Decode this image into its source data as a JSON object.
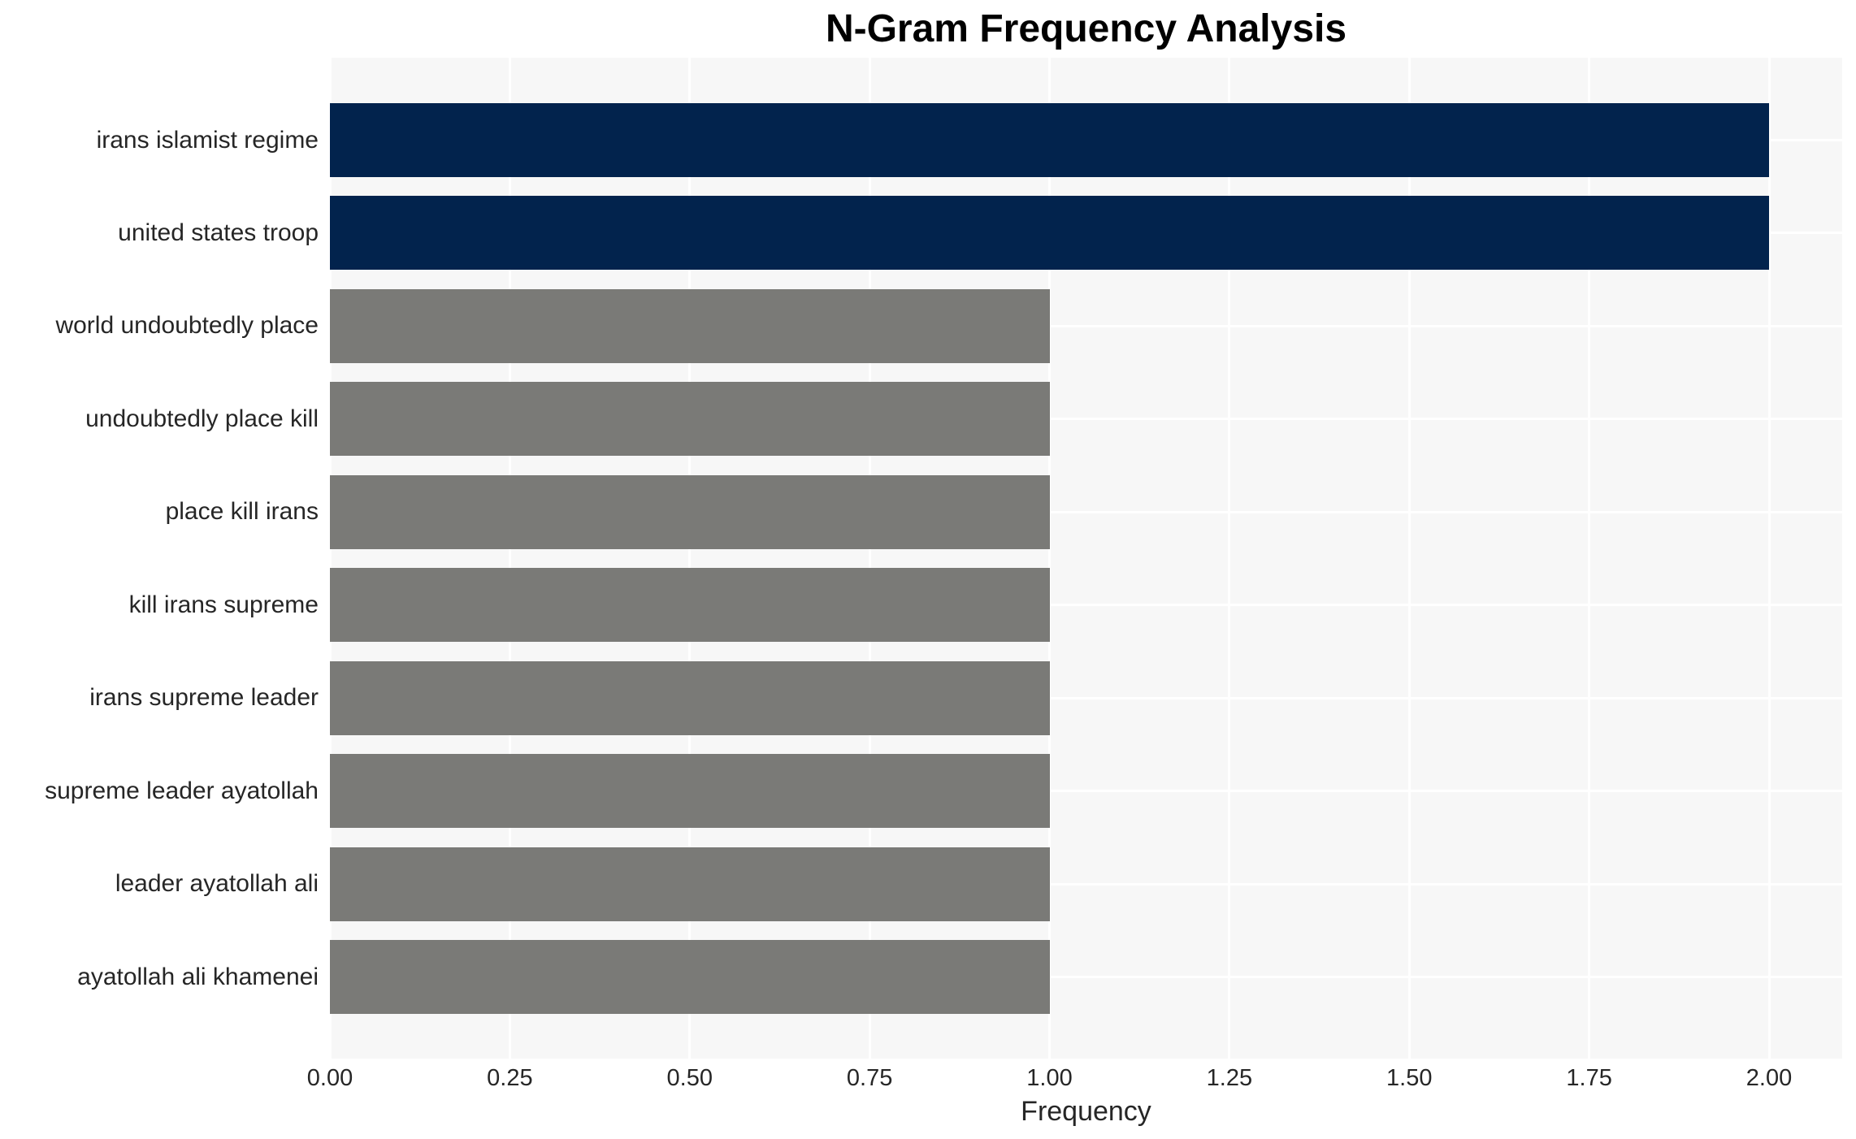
{
  "chart_data": {
    "type": "bar",
    "orientation": "horizontal",
    "title": "N-Gram Frequency Analysis",
    "xlabel": "Frequency",
    "ylabel": "",
    "categories": [
      "irans islamist regime",
      "united states troop",
      "world undoubtedly place",
      "undoubtedly place kill",
      "place kill irans",
      "kill irans supreme",
      "irans supreme leader",
      "supreme leader ayatollah",
      "leader ayatollah ali",
      "ayatollah ali khamenei"
    ],
    "values": [
      2.0,
      2.0,
      1.0,
      1.0,
      1.0,
      1.0,
      1.0,
      1.0,
      1.0,
      1.0
    ],
    "bar_colors": [
      "#02234d",
      "#02234d",
      "#7a7a77",
      "#7a7a77",
      "#7a7a77",
      "#7a7a77",
      "#7a7a77",
      "#7a7a77",
      "#7a7a77",
      "#7a7a77"
    ],
    "xlim": [
      0,
      2.1
    ],
    "xticks": [
      0.0,
      0.25,
      0.5,
      0.75,
      1.0,
      1.25,
      1.5,
      1.75,
      2.0
    ],
    "xtick_labels": [
      "0.00",
      "0.25",
      "0.50",
      "0.75",
      "1.00",
      "1.25",
      "1.50",
      "1.75",
      "2.00"
    ],
    "grid": true,
    "legend": false,
    "colors": {
      "bar_high": "#02234d",
      "bar_low": "#7a7a77",
      "plot_background": "#f7f7f7",
      "gridline": "#ffffff",
      "tick_text": "#262626",
      "title_text": "#000000"
    }
  }
}
